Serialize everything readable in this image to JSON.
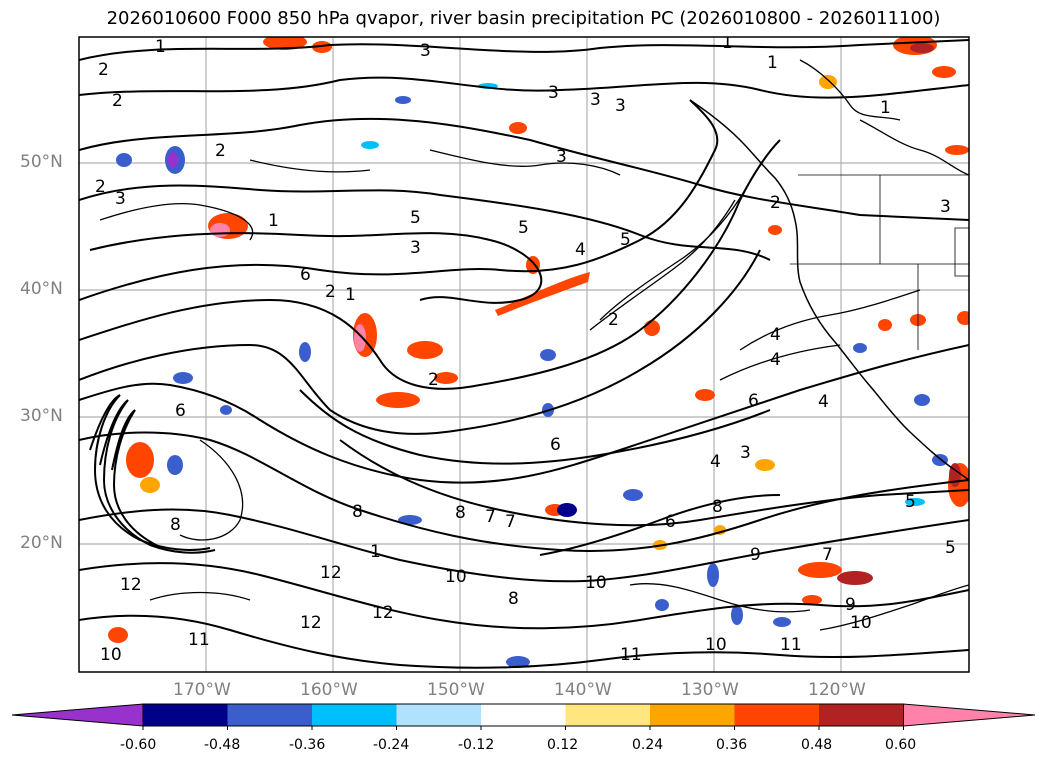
{
  "title": "2026010600 F000 850 hPa qvapor, river basin precipitation PC (2026010800 - 2026011100)",
  "map": {
    "lat_labels": [
      "50°N",
      "40°N",
      "30°N",
      "20°N"
    ],
    "lat_values": [
      50,
      40,
      30,
      20
    ],
    "lon_labels": [
      "170°W",
      "160°W",
      "150°W",
      "140°W",
      "130°W",
      "120°W"
    ],
    "lon_values": [
      -170,
      -160,
      -150,
      -140,
      -130,
      -120
    ],
    "extent": {
      "lon_min": -176,
      "lon_max": -106,
      "lat_min": 10,
      "lat_max": 60
    },
    "contour_labels": [
      "1",
      "2",
      "3",
      "4",
      "5",
      "6",
      "7",
      "8",
      "9",
      "10",
      "11",
      "12"
    ],
    "grid": true
  },
  "colorbar": {
    "tick_labels": [
      "-0.60",
      "-0.48",
      "-0.36",
      "-0.24",
      "-0.12",
      "0.12",
      "0.24",
      "0.36",
      "0.48",
      "0.60"
    ],
    "colors": [
      "#9932cc",
      "#00008b",
      "#3a5fcd",
      "#00bfff",
      "#b0e2ff",
      "#ffffff",
      "#ffe680",
      "#ffa500",
      "#ff4500",
      "#b22222",
      "#ff82ab"
    ],
    "extend": "both"
  }
}
